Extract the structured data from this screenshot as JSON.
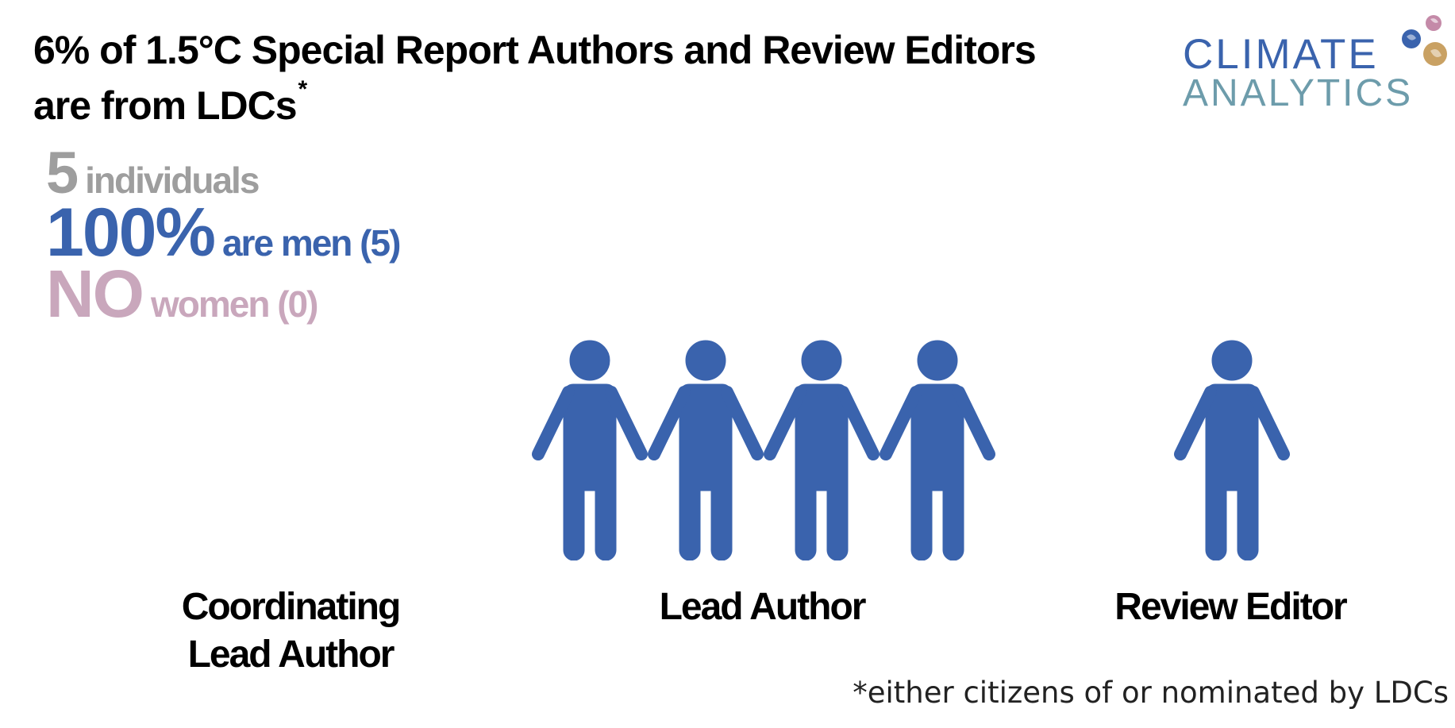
{
  "title": {
    "line1": "6% of 1.5°C Special Report Authors and Review Editors",
    "line2": "are from LDCs",
    "footnote_mark": "*"
  },
  "logo": {
    "line1": "CLIMATE",
    "line2": "ANALYTICS"
  },
  "stats": {
    "individuals_count": "5",
    "individuals_label": "individuals",
    "men_percent": "100%",
    "men_label": "are men (5)",
    "women_value": "NO",
    "women_label": "women (0)"
  },
  "roles": [
    {
      "label_line1": "Coordinating",
      "label_line2": "Lead Author",
      "men": 0
    },
    {
      "label_line1": "Lead Author",
      "label_line2": "",
      "men": 4
    },
    {
      "label_line1": "Review Editor",
      "label_line2": "",
      "men": 1
    }
  ],
  "footnote": "*either citizens of or nominated by LDCs",
  "colors": {
    "men": "#3a63ad",
    "women": "#c9a7bc",
    "neutral": "#9e9e9e",
    "logo_top": "#3a63ad",
    "logo_bottom": "#6d9cab"
  },
  "icons": {
    "person": "person-icon",
    "logo": "globe-icon"
  }
}
